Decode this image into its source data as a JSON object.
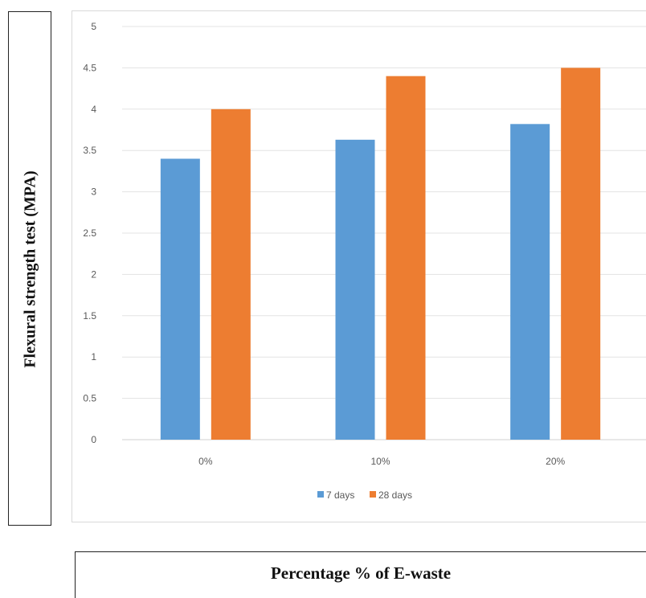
{
  "chart_data": {
    "type": "bar",
    "categories": [
      "0%",
      "10%",
      "20%"
    ],
    "series": [
      {
        "name": "7 days",
        "values": [
          3.4,
          3.63,
          3.82
        ],
        "color": "#5b9bd5"
      },
      {
        "name": "28 days",
        "values": [
          4.0,
          4.4,
          4.5
        ],
        "color": "#ed7d31"
      }
    ],
    "ylim": [
      0,
      5
    ],
    "yticks": [
      "0",
      "0.5",
      "1",
      "1.5",
      "2",
      "2.5",
      "3",
      "3.5",
      "4",
      "4.5",
      "5"
    ],
    "xlabel": "Percentage % of E-waste",
    "ylabel": "Flexural strength test (MPA)",
    "grid": true,
    "legend_position": "bottom"
  }
}
